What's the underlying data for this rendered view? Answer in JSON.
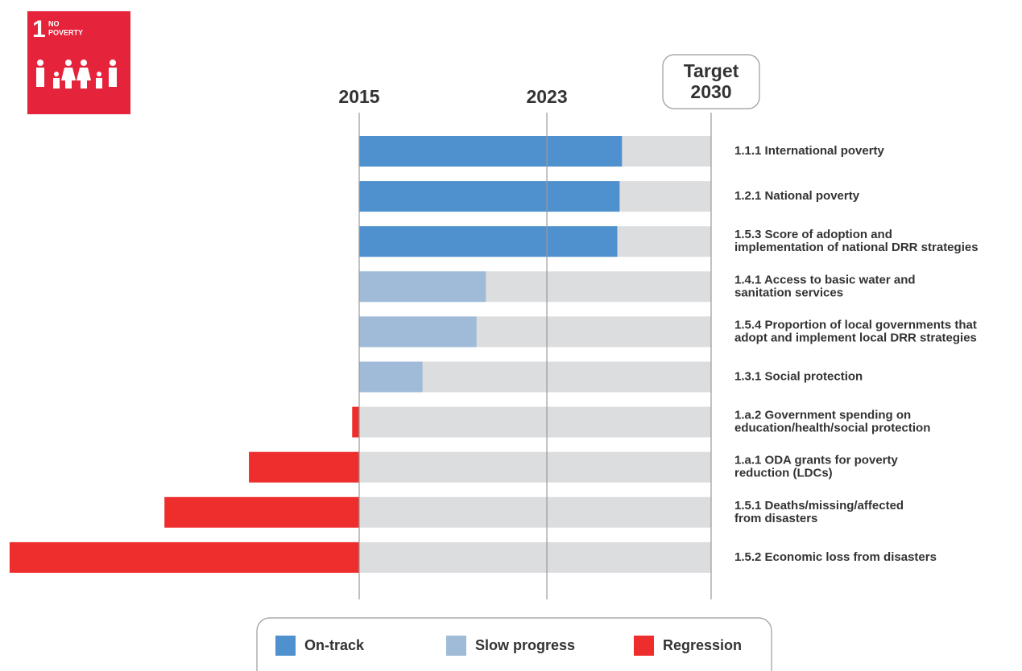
{
  "badge": {
    "number": "1",
    "lines": [
      "NO",
      "POVERTY"
    ]
  },
  "chart_data": {
    "type": "progress_bar",
    "categories": [
      [
        "1.1.1 International poverty"
      ],
      [
        "1.2.1 National poverty"
      ],
      [
        "1.5.3 Score of adoption and",
        "implementation of national DRR strategies"
      ],
      [
        "1.4.1 Access to basic water and",
        "sanitation services"
      ],
      [
        "1.5.4 Proportion of local governments that",
        "adopt and implement local DRR strategies"
      ],
      [
        "1.3.1 Social protection"
      ],
      [
        "1.a.2 Government spending on",
        "education/health/social protection"
      ],
      [
        "1.a.1 ODA grants for poverty",
        "reduction (LDCs)"
      ],
      [
        "1.5.1 Deaths/missing/affected",
        "from disasters"
      ],
      [
        "1.5.2 Economic loss from disasters"
      ]
    ],
    "series": [
      {
        "name": "On-track",
        "color": "#4f91cf",
        "values": [
          2026.2,
          2026.1,
          2026.0,
          null,
          null,
          null,
          null,
          null,
          null,
          null
        ]
      },
      {
        "name": "Slow progress",
        "color": "#9fbbd8",
        "values": [
          null,
          null,
          null,
          2020.4,
          2020.0,
          2017.7,
          null,
          null,
          null,
          null
        ]
      },
      {
        "name": "Regression",
        "color": "#ee2d2d",
        "values": [
          null,
          null,
          null,
          null,
          null,
          null,
          2014.7,
          2010.3,
          2006.7,
          2000.1
        ]
      }
    ],
    "xlim": [
      2000,
      2030
    ],
    "xticks": [
      2015,
      2023,
      2030
    ],
    "target_label": "Target"
  }
}
